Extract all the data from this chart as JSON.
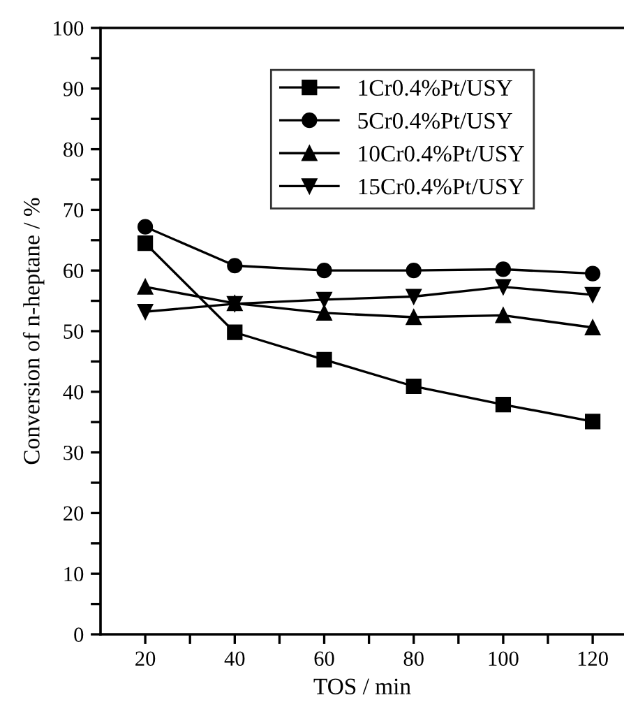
{
  "chart_data": {
    "type": "line",
    "xlabel": "TOS / min",
    "ylabel": "Conversion of n-heptane / %",
    "x": [
      20,
      40,
      60,
      80,
      100,
      120
    ],
    "series": [
      {
        "name": "1Cr0.4%Pt/USY",
        "color": "#000000",
        "marker": "square",
        "values": [
          64.5,
          49.8,
          45.3,
          40.9,
          37.9,
          35.1
        ]
      },
      {
        "name": "5Cr0.4%Pt/USY",
        "color": "#000000",
        "marker": "circle",
        "values": [
          67.2,
          60.8,
          60.0,
          60.0,
          60.2,
          59.5
        ]
      },
      {
        "name": "10Cr0.4%Pt/USY",
        "color": "#000000",
        "marker": "triangle",
        "values": [
          57.3,
          54.6,
          53.0,
          52.3,
          52.6,
          50.6
        ]
      },
      {
        "name": "15Cr0.4%Pt/USY",
        "color": "#000000",
        "marker": "triangle_down",
        "values": [
          53.2,
          54.5,
          55.2,
          55.7,
          57.3,
          56.0
        ]
      }
    ],
    "xlim": [
      10,
      127
    ],
    "ylim": [
      0,
      100
    ],
    "xticks": [
      20,
      {
        "value": 30,
        "label": null
      },
      40,
      {
        "value": 50,
        "label": null
      },
      60,
      {
        "value": 70,
        "label": null
      },
      80,
      {
        "value": 90,
        "label": null
      },
      100,
      {
        "value": 110,
        "label": null
      },
      120
    ],
    "yticks": [
      0,
      {
        "value": 5,
        "label": null
      },
      10,
      {
        "value": 15,
        "label": null
      },
      20,
      {
        "value": 25,
        "label": null
      },
      30,
      {
        "value": 35,
        "label": null
      },
      40,
      {
        "value": 45,
        "label": null
      },
      50,
      {
        "value": 55,
        "label": null
      },
      60,
      {
        "value": 65,
        "label": null
      },
      70,
      {
        "value": 75,
        "label": null
      },
      80,
      {
        "value": 85,
        "label": null
      },
      90,
      {
        "value": 95,
        "label": null
      },
      100
    ],
    "legend": "top right",
    "grid": false,
    "line_style": "solid"
  }
}
